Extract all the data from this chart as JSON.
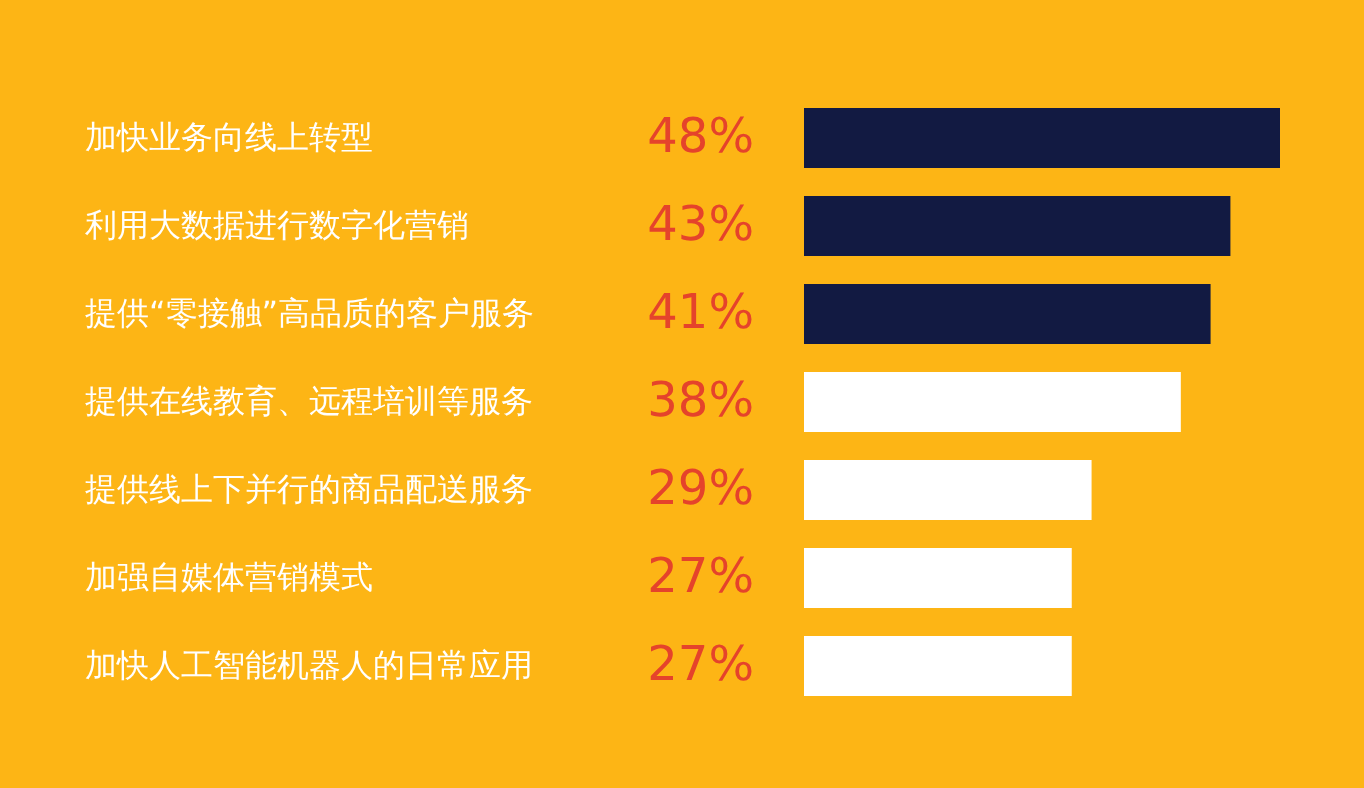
{
  "chart_data": {
    "type": "bar",
    "orientation": "horizontal",
    "categories": [
      "加快业务向线上转型",
      "利用大数据进行数字化营销",
      "提供“零接触”高品质的客户服务",
      "提供在线教育、远程培训等服务",
      "提供线上下并行的商品配送服务",
      "加强自媒体营销模式",
      "加快人工智能机器人的日常应用"
    ],
    "values": [
      48,
      43,
      41,
      38,
      29,
      27,
      27
    ],
    "colors": [
      "#121a42",
      "#121a42",
      "#121a42",
      "#ffffff",
      "#ffffff",
      "#ffffff",
      "#ffffff"
    ],
    "value_labels": [
      "48%",
      "43%",
      "41%",
      "38%",
      "29%",
      "27%",
      "27%"
    ]
  }
}
